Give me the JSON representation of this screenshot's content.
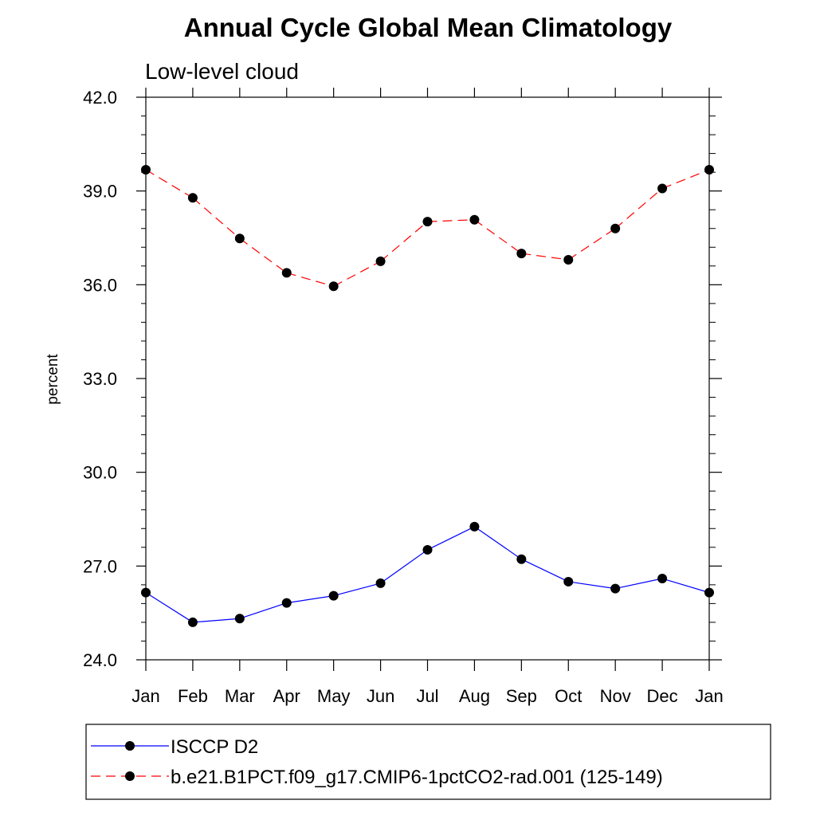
{
  "chart_data": {
    "type": "line",
    "title": "Annual Cycle Global Mean Climatology",
    "subtitle": "Low-level cloud",
    "xlabel": "",
    "ylabel": "percent",
    "categories": [
      "Jan",
      "Feb",
      "Mar",
      "Apr",
      "May",
      "Jun",
      "Jul",
      "Aug",
      "Sep",
      "Oct",
      "Nov",
      "Dec",
      "Jan"
    ],
    "ylim": [
      24.0,
      42.0
    ],
    "yticks": [
      "24.0",
      "27.0",
      "30.0",
      "33.0",
      "36.0",
      "39.0",
      "42.0"
    ],
    "grid": false,
    "legend_position": "bottom",
    "series": [
      {
        "name": "ISCCP D2",
        "color": "#0000ff",
        "line_style": "solid",
        "marker": "filled-circle",
        "values": [
          26.15,
          25.2,
          25.32,
          25.82,
          26.05,
          26.45,
          27.52,
          28.26,
          27.22,
          26.5,
          26.28,
          26.6,
          26.15
        ]
      },
      {
        "name": "b.e21.B1PCT.f09_g17.CMIP6-1pctCO2-rad.001 (125-149)",
        "color": "#ff0000",
        "line_style": "dashed",
        "marker": "filled-circle",
        "values": [
          39.68,
          38.78,
          37.48,
          36.38,
          35.95,
          36.75,
          38.02,
          38.08,
          37.0,
          36.8,
          37.8,
          39.08,
          39.68
        ]
      }
    ]
  }
}
